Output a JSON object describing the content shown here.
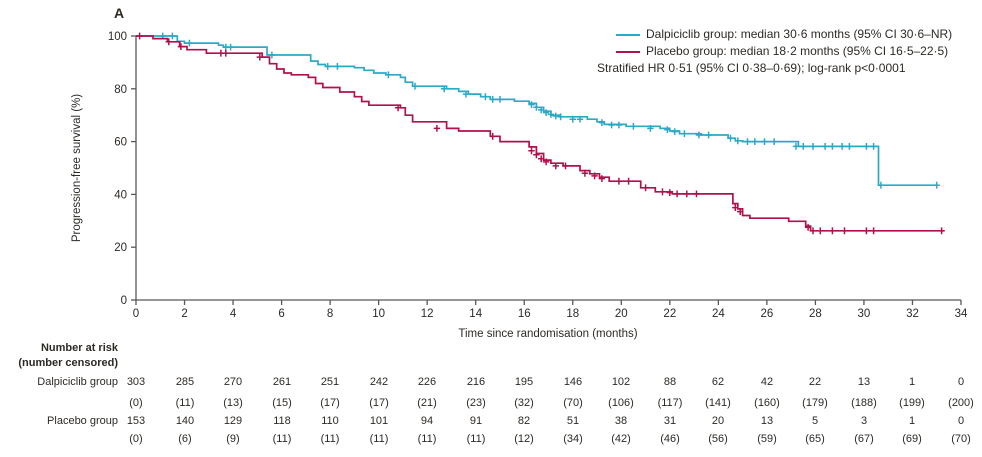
{
  "chart_data": {
    "type": "line",
    "subtype": "kaplan-meier-step",
    "panel_label": "A",
    "xlabel": "Time since randomisation (months)",
    "ylabel": "Progression-free survival (%)",
    "xlim": [
      0,
      34
    ],
    "ylim": [
      0,
      100
    ],
    "x_ticks": [
      0,
      2,
      4,
      6,
      8,
      10,
      12,
      14,
      16,
      18,
      20,
      22,
      24,
      26,
      28,
      30,
      32,
      34
    ],
    "y_ticks": [
      0,
      20,
      40,
      60,
      80,
      100
    ],
    "grid": false,
    "legend_position": "top-right",
    "annotation": "Stratified HR 0·51 (95% CI 0·38–0·69); log-rank p<0·0001",
    "axis_color": "#58585a",
    "text_color": "#2d2a26",
    "series": [
      {
        "name": "Dalpiciclib group",
        "label": "Dalpiciclib group: median 30·6 months (95% CI 30·6–NR)",
        "median_months": 30.6,
        "ci": "30·6–NR",
        "color": "#2BA9C6",
        "steps": [
          [
            0,
            100
          ],
          [
            1.7,
            98
          ],
          [
            2.0,
            97.3
          ],
          [
            3.4,
            96.5
          ],
          [
            3.6,
            95.8
          ],
          [
            5.4,
            92.8
          ],
          [
            7.2,
            90.5
          ],
          [
            7.5,
            89.2
          ],
          [
            7.8,
            88.5
          ],
          [
            9.0,
            88
          ],
          [
            9.4,
            87
          ],
          [
            9.8,
            86
          ],
          [
            10.3,
            85.3
          ],
          [
            10.9,
            84.3
          ],
          [
            11.1,
            82.5
          ],
          [
            11.4,
            81
          ],
          [
            12.8,
            80
          ],
          [
            13.3,
            79
          ],
          [
            13.7,
            78
          ],
          [
            14.2,
            77
          ],
          [
            14.6,
            76
          ],
          [
            15.6,
            75.3
          ],
          [
            16.2,
            74.5
          ],
          [
            16.5,
            73
          ],
          [
            16.8,
            71.5
          ],
          [
            17.1,
            70
          ],
          [
            17.5,
            69.4
          ],
          [
            18.6,
            68.5
          ],
          [
            19.0,
            67.5
          ],
          [
            19.3,
            66.5
          ],
          [
            20.2,
            65.8
          ],
          [
            21.6,
            65
          ],
          [
            22.0,
            64
          ],
          [
            22.4,
            63
          ],
          [
            23.3,
            62.5
          ],
          [
            24.4,
            61.3
          ],
          [
            24.7,
            60.3
          ],
          [
            25.0,
            60
          ],
          [
            27.3,
            58.2
          ],
          [
            30.6,
            43.5
          ],
          [
            33.0,
            43.5
          ]
        ],
        "censor_marks": [
          [
            1.1,
            100
          ],
          [
            1.5,
            100
          ],
          [
            2.2,
            97.3
          ],
          [
            3.7,
            95.8
          ],
          [
            3.9,
            95.8
          ],
          [
            5.6,
            92.8
          ],
          [
            7.9,
            88.5
          ],
          [
            8.3,
            88.5
          ],
          [
            10.4,
            85.3
          ],
          [
            11.5,
            81
          ],
          [
            12.7,
            80
          ],
          [
            13.6,
            78
          ],
          [
            14.4,
            77
          ],
          [
            14.7,
            76
          ],
          [
            15.0,
            76
          ],
          [
            16.3,
            74
          ],
          [
            16.5,
            73
          ],
          [
            16.7,
            72
          ],
          [
            16.9,
            71
          ],
          [
            17.1,
            70.3
          ],
          [
            17.3,
            69.7
          ],
          [
            17.5,
            69.4
          ],
          [
            18.0,
            68.5
          ],
          [
            18.3,
            68.5
          ],
          [
            19.2,
            67.2
          ],
          [
            19.6,
            66.3
          ],
          [
            19.9,
            66.3
          ],
          [
            20.5,
            65.8
          ],
          [
            21.2,
            65
          ],
          [
            21.9,
            64.5
          ],
          [
            22.2,
            63.8
          ],
          [
            22.6,
            63
          ],
          [
            23.2,
            62.5
          ],
          [
            23.6,
            62.5
          ],
          [
            24.5,
            61.3
          ],
          [
            24.8,
            60.3
          ],
          [
            25.2,
            60
          ],
          [
            25.5,
            60
          ],
          [
            25.9,
            60
          ],
          [
            26.3,
            60
          ],
          [
            27.2,
            58.2
          ],
          [
            27.5,
            58.2
          ],
          [
            27.9,
            58.2
          ],
          [
            28.4,
            58.2
          ],
          [
            28.7,
            58.2
          ],
          [
            29.1,
            58.2
          ],
          [
            29.4,
            58.2
          ],
          [
            30.1,
            58.2
          ],
          [
            30.4,
            58.2
          ],
          [
            30.7,
            43.5
          ],
          [
            33.0,
            43.5
          ]
        ]
      },
      {
        "name": "Placebo group",
        "label": "Placebo group: median 18·2 months (95% CI 16·5–22·5)",
        "median_months": 18.2,
        "ci": "16·5–22·5",
        "color": "#B0104C",
        "steps": [
          [
            0,
            100
          ],
          [
            0.7,
            99
          ],
          [
            1.3,
            97.8
          ],
          [
            1.8,
            96
          ],
          [
            2.1,
            94.8
          ],
          [
            2.9,
            93.5
          ],
          [
            5.2,
            92
          ],
          [
            5.5,
            89.5
          ],
          [
            5.8,
            87.5
          ],
          [
            6.1,
            86
          ],
          [
            6.4,
            85.3
          ],
          [
            7.1,
            84.3
          ],
          [
            7.4,
            82
          ],
          [
            7.7,
            80.5
          ],
          [
            8.4,
            78.8
          ],
          [
            9.0,
            77
          ],
          [
            9.3,
            75.2
          ],
          [
            9.6,
            73.8
          ],
          [
            10.9,
            72.8
          ],
          [
            11.1,
            70
          ],
          [
            11.4,
            67.5
          ],
          [
            12.8,
            65
          ],
          [
            13.3,
            64
          ],
          [
            14.6,
            62
          ],
          [
            15.0,
            60
          ],
          [
            16.2,
            58
          ],
          [
            16.5,
            55.5
          ],
          [
            16.8,
            53
          ],
          [
            17.1,
            51.8
          ],
          [
            17.6,
            50.8
          ],
          [
            18.3,
            49
          ],
          [
            18.7,
            47.8
          ],
          [
            19.1,
            46.5
          ],
          [
            19.5,
            45
          ],
          [
            20.8,
            42.5
          ],
          [
            21.4,
            41
          ],
          [
            22.1,
            40.2
          ],
          [
            24.6,
            36.5
          ],
          [
            24.8,
            34.5
          ],
          [
            25.0,
            32
          ],
          [
            25.3,
            31
          ],
          [
            26.9,
            29.8
          ],
          [
            27.6,
            28
          ],
          [
            27.8,
            26.2
          ],
          [
            33.3,
            26.2
          ]
        ],
        "censor_marks": [
          [
            0.15,
            100
          ],
          [
            1.35,
            97.8
          ],
          [
            1.85,
            96
          ],
          [
            3.5,
            93.5
          ],
          [
            3.7,
            93.5
          ],
          [
            5.1,
            92
          ],
          [
            10.8,
            72.8
          ],
          [
            12.4,
            65
          ],
          [
            14.7,
            62
          ],
          [
            16.3,
            56.5
          ],
          [
            16.5,
            55
          ],
          [
            16.7,
            53.5
          ],
          [
            16.9,
            52.3
          ],
          [
            17.3,
            50.8
          ],
          [
            17.7,
            50.8
          ],
          [
            18.5,
            48
          ],
          [
            18.9,
            47
          ],
          [
            19.2,
            46
          ],
          [
            19.9,
            45
          ],
          [
            20.3,
            45
          ],
          [
            21.0,
            42.5
          ],
          [
            21.7,
            41
          ],
          [
            22.0,
            40.7
          ],
          [
            22.3,
            40.2
          ],
          [
            22.7,
            40.2
          ],
          [
            23.1,
            40.2
          ],
          [
            24.7,
            35
          ],
          [
            24.9,
            33.5
          ],
          [
            27.7,
            27.5
          ],
          [
            27.9,
            26.2
          ],
          [
            28.2,
            26.2
          ],
          [
            28.7,
            26.2
          ],
          [
            29.2,
            26.2
          ],
          [
            30.1,
            26.2
          ],
          [
            30.4,
            26.2
          ],
          [
            33.2,
            26.2
          ]
        ]
      }
    ],
    "number_at_risk": {
      "header": [
        "Number at risk",
        "(number censored)"
      ],
      "time_points": [
        0,
        2,
        4,
        6,
        8,
        10,
        12,
        14,
        16,
        18,
        20,
        22,
        24,
        26,
        28,
        30,
        32,
        34
      ],
      "rows": [
        {
          "label": "Dalpiciclib group",
          "at_risk": [
            303,
            285,
            270,
            261,
            251,
            242,
            226,
            216,
            195,
            146,
            102,
            88,
            62,
            42,
            22,
            13,
            1,
            0
          ],
          "censored": [
            0,
            11,
            13,
            15,
            17,
            17,
            21,
            23,
            32,
            70,
            106,
            117,
            141,
            160,
            179,
            188,
            199,
            200
          ]
        },
        {
          "label": "Placebo group",
          "at_risk": [
            153,
            140,
            129,
            118,
            110,
            101,
            94,
            91,
            82,
            51,
            38,
            31,
            20,
            13,
            5,
            3,
            1,
            0
          ],
          "censored": [
            0,
            6,
            9,
            11,
            11,
            11,
            11,
            11,
            12,
            34,
            42,
            46,
            56,
            59,
            65,
            67,
            69,
            70
          ]
        }
      ]
    }
  }
}
